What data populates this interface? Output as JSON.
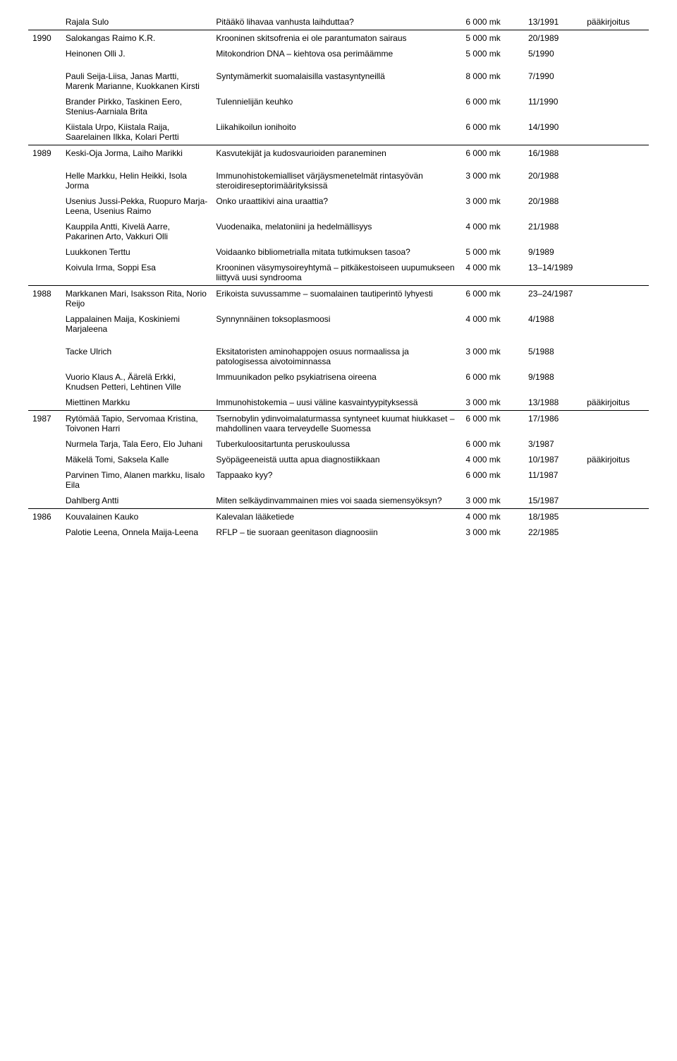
{
  "rows": [
    {
      "year": "",
      "author": "Rajala Sulo",
      "title": "Pitääkö lihavaa vanhusta laihduttaa?",
      "amount": "6 000 mk",
      "issue": "13/1991",
      "note": "pääkirjoitus"
    },
    {
      "hr": true
    },
    {
      "year": "1990",
      "author": "Salokangas Raimo K.R.",
      "title": "Krooninen skitsofrenia ei ole parantumaton sairaus",
      "amount": "5 000 mk",
      "issue": "20/1989",
      "note": ""
    },
    {
      "year": "",
      "author": "Heinonen Olli J.",
      "title": "Mitokondrion DNA – kiehtova osa perimäämme",
      "amount": "5 000 mk",
      "issue": "5/1990",
      "note": ""
    },
    {
      "spacer": true
    },
    {
      "year": "",
      "author": "Pauli Seija-Liisa, Janas Martti, Marenk Marianne, Kuokkanen Kirsti",
      "title": "Syntymämerkit suomalaisilla vastasyntyneillä",
      "amount": "8 000 mk",
      "issue": "7/1990",
      "note": ""
    },
    {
      "year": "",
      "author": "Brander Pirkko, Taskinen Eero, Stenius-Aarniala Brita",
      "title": "Tulennielijän keuhko",
      "amount": "6 000 mk",
      "issue": "11/1990",
      "note": ""
    },
    {
      "year": "",
      "author": "Kiistala Urpo, Kiistala Raija, Saarelainen Ilkka, Kolari Pertti",
      "title": "Liikahikoilun ionihoito",
      "amount": "6 000 mk",
      "issue": "14/1990",
      "note": ""
    },
    {
      "hr": true
    },
    {
      "year": "1989",
      "author": "Keski-Oja Jorma, Laiho Marikki",
      "title": "Kasvutekijät ja kudosvaurioiden paraneminen",
      "amount": "6 000 mk",
      "issue": "16/1988",
      "note": ""
    },
    {
      "spacer": true
    },
    {
      "year": "",
      "author": "Helle Markku, Helin Heikki, Isola Jorma",
      "title": "Immunohistokemialliset värjäysmenetelmät rintasyövän steroidireseptorimäärityksissä",
      "amount": "3 000 mk",
      "issue": "20/1988",
      "note": ""
    },
    {
      "year": "",
      "author": "Usenius Jussi-Pekka, Ruopuro Marja-Leena, Usenius Raimo",
      "title": "Onko uraattikivi aina uraattia?",
      "amount": "3 000 mk",
      "issue": "20/1988",
      "note": ""
    },
    {
      "year": "",
      "author": "Kauppila Antti, Kivelä Aarre, Pakarinen Arto, Vakkuri Olli",
      "title": "Vuodenaika, melatoniini ja hedelmällisyys",
      "amount": "4 000 mk",
      "issue": "21/1988",
      "note": ""
    },
    {
      "year": "",
      "author": "Luukkonen Terttu",
      "title": "Voidaanko bibliometrialla mitata tutkimuksen tasoa?",
      "amount": "5 000 mk",
      "issue": "9/1989",
      "note": ""
    },
    {
      "year": "",
      "author": "Koivula Irma, Soppi Esa",
      "title": "Krooninen väsymysoireyhtymä – pitkäkestoiseen uupumukseen liittyvä uusi syndrooma",
      "amount": "4 000 mk",
      "issue": "13–14/1989",
      "note": ""
    },
    {
      "hr": true
    },
    {
      "year": "1988",
      "author": "Markkanen Mari, Isaksson Rita, Norio Reijo",
      "title": "Erikoista suvussamme – suomalainen tautiperintö lyhyesti",
      "amount": "6 000 mk",
      "issue": "23–24/1987",
      "note": ""
    },
    {
      "year": "",
      "author": "Lappalainen Maija, Koskiniemi Marjaleena",
      "title": "Synnynnäinen toksoplasmoosi",
      "amount": "4 000 mk",
      "issue": "4/1988",
      "note": ""
    },
    {
      "spacer": true
    },
    {
      "year": "",
      "author": "Tacke Ulrich",
      "title": "Eksitatoristen aminohappojen osuus normaalissa ja patologisessa aivotoiminnassa",
      "amount": "3 000 mk",
      "issue": "5/1988",
      "note": ""
    },
    {
      "year": "",
      "author": "Vuorio Klaus A., Äärelä Erkki, Knudsen Petteri, Lehtinen Ville",
      "title": "Immuunikadon pelko psykiatrisena oireena",
      "amount": "6 000 mk",
      "issue": "9/1988",
      "note": ""
    },
    {
      "year": "",
      "author": "Miettinen Markku",
      "title": "Immunohistokemia – uusi väline kasvaintyypityksessä",
      "amount": "3 000 mk",
      "issue": "13/1988",
      "note": "pääkirjoitus"
    },
    {
      "hr": true
    },
    {
      "year": "1987",
      "author": "Rytömää Tapio, Servomaa Kristina, Toivonen Harri",
      "title": "Tsernobylin ydinvoimalaturmassa syntyneet kuumat hiukkaset – mahdollinen vaara terveydelle Suomessa",
      "amount": "6 000 mk",
      "issue": "17/1986",
      "note": ""
    },
    {
      "year": "",
      "author": "Nurmela Tarja, Tala Eero, Elo Juhani",
      "title": "Tuberkuloositartunta peruskoulussa",
      "amount": "6 000 mk",
      "issue": "3/1987",
      "note": ""
    },
    {
      "year": "",
      "author": "Mäkelä Tomi, Saksela Kalle",
      "title": "Syöpägeeneistä uutta apua diagnostiikkaan",
      "amount": "4 000 mk",
      "issue": "10/1987",
      "note": "pääkirjoitus"
    },
    {
      "year": "",
      "author": "Parvinen Timo, Alanen markku, Iisalo Eila",
      "title": "Tappaako kyy?",
      "amount": "6 000 mk",
      "issue": "11/1987",
      "note": ""
    },
    {
      "year": "",
      "author": "Dahlberg Antti",
      "title": "Miten selkäydinvammainen mies voi saada siemensyöksyn?",
      "amount": "3 000 mk",
      "issue": "15/1987",
      "note": ""
    },
    {
      "hr": true
    },
    {
      "year": "1986",
      "author": "Kouvalainen Kauko",
      "title": "Kalevalan lääketiede",
      "amount": "4 000 mk",
      "issue": "18/1985",
      "note": ""
    },
    {
      "year": "",
      "author": "Palotie Leena, Onnela Maija-Leena",
      "title": "RFLP – tie suoraan geenitason diagnoosiin",
      "amount": "3 000 mk",
      "issue": "22/1985",
      "note": ""
    }
  ]
}
